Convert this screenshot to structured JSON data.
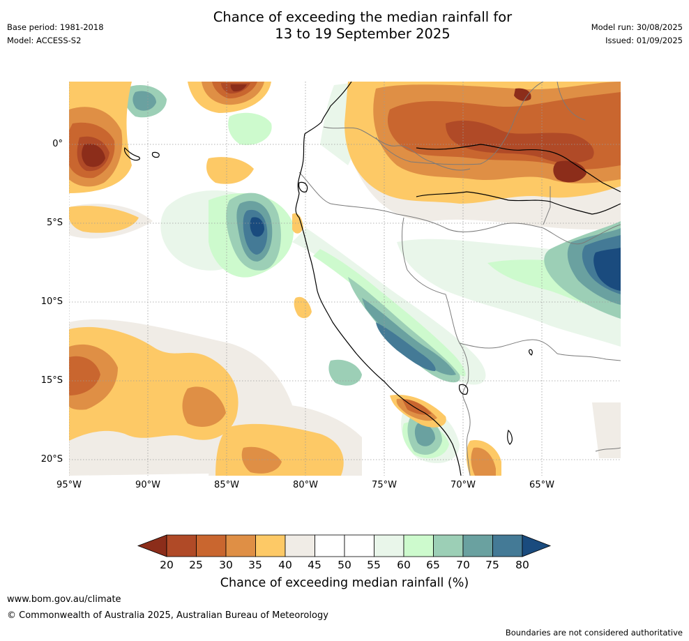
{
  "header": {
    "title_line1": "Chance of exceeding the median rainfall for",
    "title_line2": "13 to 19 September 2025",
    "base_period": "Base period: 1981-2018",
    "model": "Model: ACCESS-S2",
    "model_run": "Model run: 30/08/2025",
    "issued": "Issued: 01/09/2025"
  },
  "map": {
    "lat_labels": [
      "0°",
      "5°S",
      "10°S",
      "15°S",
      "20°S"
    ],
    "lon_labels": [
      "95°W",
      "90°W",
      "85°W",
      "80°W",
      "75°W",
      "70°W",
      "65°W"
    ]
  },
  "colorbar": {
    "ticks": [
      "20",
      "25",
      "30",
      "35",
      "40",
      "45",
      "50",
      "55",
      "60",
      "65",
      "70",
      "75",
      "80"
    ],
    "colors": [
      "#8c2d1a",
      "#b04a27",
      "#c9662f",
      "#df8f45",
      "#fdc966",
      "#f0ece6",
      "#ffffff",
      "#ffffff",
      "#e9f6ea",
      "#cdfacd",
      "#9ccfb6",
      "#6aa1a0",
      "#447a96",
      "#1a4b7e"
    ],
    "title": "Chance of exceeding median rainfall (%)"
  },
  "footer": {
    "url": "www.bom.gov.au/climate",
    "copyright": "© Commonwealth of Australia 2025, Australian Bureau of Meteorology",
    "disclaimer": "Boundaries are not considered authoritative"
  }
}
